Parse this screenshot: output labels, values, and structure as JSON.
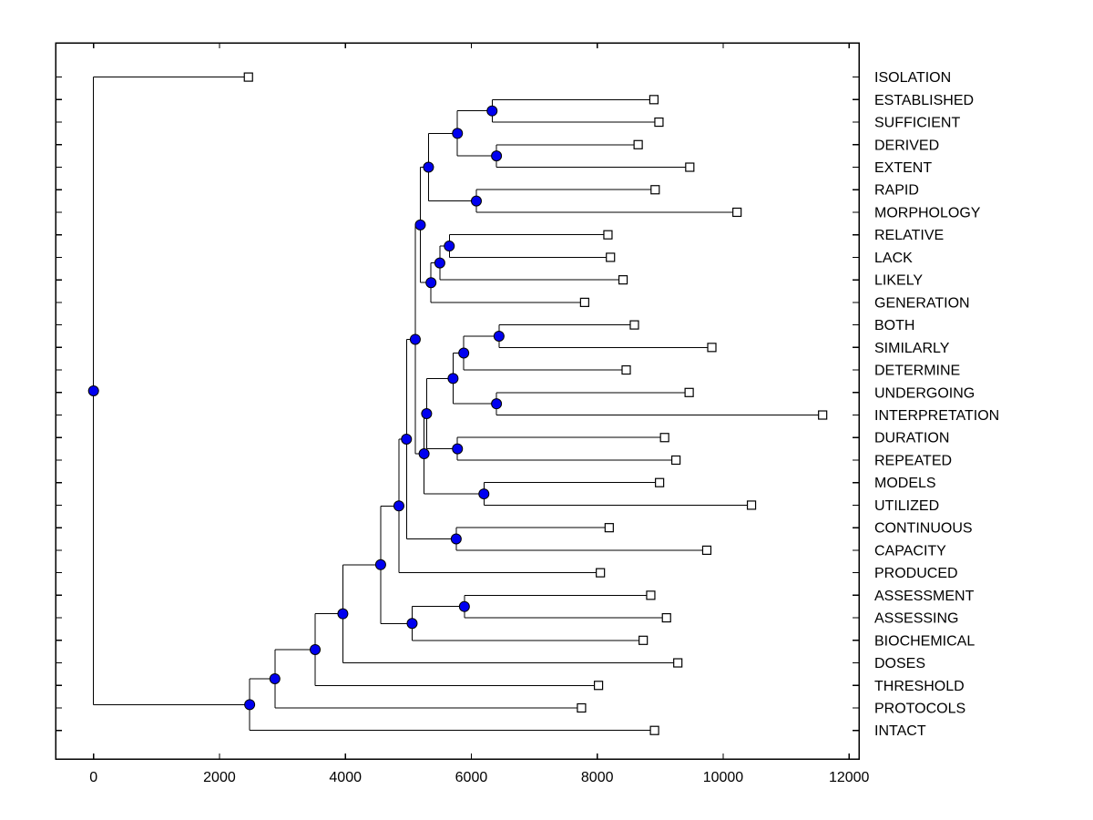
{
  "figure": {
    "background": "#ffffff"
  },
  "chart_data": {
    "type": "dendrogram",
    "subtype": "phylogenetic-tree-plot",
    "orientation": "horizontal",
    "title": "",
    "xlabel": "",
    "ylabel": "",
    "grid": false,
    "legend": null,
    "x_axis": {
      "ticks": [
        0,
        2000,
        4000,
        6000,
        8000,
        10000,
        12000
      ],
      "range": [
        -600,
        12160
      ]
    },
    "style": {
      "line_color": "#000000",
      "leaf_marker": "square",
      "leaf_marker_fill": "#ffffff",
      "leaf_marker_edge": "#000000",
      "branch_marker": "circle",
      "branch_marker_fill": "#0000f0",
      "branch_marker_edge": "#000000",
      "box_color": "#000000",
      "label_color": "#000000"
    },
    "leaves": [
      {
        "label": "ISOLATION",
        "distance": 2460
      },
      {
        "label": "ESTABLISHED",
        "distance": 8900
      },
      {
        "label": "SUFFICIENT",
        "distance": 8980
      },
      {
        "label": "DERIVED",
        "distance": 8650
      },
      {
        "label": "EXTENT",
        "distance": 9470
      },
      {
        "label": "RAPID",
        "distance": 8920
      },
      {
        "label": "MORPHOLOGY",
        "distance": 10220
      },
      {
        "label": "RELATIVE",
        "distance": 8170
      },
      {
        "label": "LACK",
        "distance": 8210
      },
      {
        "label": "LIKELY",
        "distance": 8410
      },
      {
        "label": "GENERATION",
        "distance": 7800
      },
      {
        "label": "BOTH",
        "distance": 8590
      },
      {
        "label": "SIMILARLY",
        "distance": 9820
      },
      {
        "label": "DETERMINE",
        "distance": 8460
      },
      {
        "label": "UNDERGOING",
        "distance": 9460
      },
      {
        "label": "INTERPRETATION",
        "distance": 11580
      },
      {
        "label": "DURATION",
        "distance": 9070
      },
      {
        "label": "REPEATED",
        "distance": 9250
      },
      {
        "label": "MODELS",
        "distance": 8990
      },
      {
        "label": "UTILIZED",
        "distance": 10450
      },
      {
        "label": "CONTINUOUS",
        "distance": 8190
      },
      {
        "label": "CAPACITY",
        "distance": 9740
      },
      {
        "label": "PRODUCED",
        "distance": 8050
      },
      {
        "label": "ASSESSMENT",
        "distance": 8850
      },
      {
        "label": "ASSESSING",
        "distance": 9100
      },
      {
        "label": "BIOCHEMICAL",
        "distance": 8730
      },
      {
        "label": "DOSES",
        "distance": 9280
      },
      {
        "label": "THRESHOLD",
        "distance": 8020
      },
      {
        "label": "PROTOCOLS",
        "distance": 7750
      },
      {
        "label": "INTACT",
        "distance": 8910
      }
    ],
    "branches": [
      {
        "id": "b1",
        "distance": 6330,
        "children": [
          "ESTABLISHED",
          "SUFFICIENT"
        ]
      },
      {
        "id": "b2",
        "distance": 6400,
        "children": [
          "DERIVED",
          "EXTENT"
        ]
      },
      {
        "id": "b3",
        "distance": 5780,
        "children": [
          "b1",
          "b2"
        ]
      },
      {
        "id": "b4",
        "distance": 6080,
        "children": [
          "RAPID",
          "MORPHOLOGY"
        ]
      },
      {
        "id": "b5",
        "distance": 5320,
        "children": [
          "b3",
          "b4"
        ]
      },
      {
        "id": "b6",
        "distance": 5650,
        "children": [
          "RELATIVE",
          "LACK"
        ]
      },
      {
        "id": "b7",
        "distance": 5500,
        "children": [
          "b6",
          "LIKELY"
        ]
      },
      {
        "id": "b8",
        "distance": 5360,
        "children": [
          "b7",
          "GENERATION"
        ]
      },
      {
        "id": "b9",
        "distance": 5190,
        "children": [
          "b5",
          "b8"
        ]
      },
      {
        "id": "b10",
        "distance": 6440,
        "children": [
          "BOTH",
          "SIMILARLY"
        ]
      },
      {
        "id": "b11",
        "distance": 5880,
        "children": [
          "b10",
          "DETERMINE"
        ]
      },
      {
        "id": "b12",
        "distance": 6400,
        "children": [
          "UNDERGOING",
          "INTERPRETATION"
        ]
      },
      {
        "id": "b13",
        "distance": 5710,
        "children": [
          "b11",
          "b12"
        ]
      },
      {
        "id": "b14",
        "distance": 5780,
        "children": [
          "DURATION",
          "REPEATED"
        ]
      },
      {
        "id": "b15",
        "distance": 5290,
        "children": [
          "b13",
          "b14"
        ]
      },
      {
        "id": "b16",
        "distance": 6200,
        "children": [
          "MODELS",
          "UTILIZED"
        ]
      },
      {
        "id": "b17",
        "distance": 5250,
        "children": [
          "b15",
          "b16"
        ]
      },
      {
        "id": "b18",
        "distance": 5110,
        "children": [
          "b9",
          "b17"
        ]
      },
      {
        "id": "b19",
        "distance": 5760,
        "children": [
          "CONTINUOUS",
          "CAPACITY"
        ]
      },
      {
        "id": "b20",
        "distance": 4970,
        "children": [
          "b18",
          "b19"
        ]
      },
      {
        "id": "b21",
        "distance": 4850,
        "children": [
          "b20",
          "PRODUCED"
        ]
      },
      {
        "id": "b22",
        "distance": 5890,
        "children": [
          "ASSESSMENT",
          "ASSESSING"
        ]
      },
      {
        "id": "b23",
        "distance": 5060,
        "children": [
          "b22",
          "BIOCHEMICAL"
        ]
      },
      {
        "id": "b24",
        "distance": 4560,
        "children": [
          "b21",
          "b23"
        ]
      },
      {
        "id": "b25",
        "distance": 3960,
        "children": [
          "b24",
          "DOSES"
        ]
      },
      {
        "id": "b26",
        "distance": 3520,
        "children": [
          "b25",
          "THRESHOLD"
        ]
      },
      {
        "id": "b27",
        "distance": 2880,
        "children": [
          "b26",
          "PROTOCOLS"
        ]
      },
      {
        "id": "b28",
        "distance": 2480,
        "children": [
          "b27",
          "INTACT"
        ]
      },
      {
        "id": "b29",
        "distance": 0,
        "children": [
          "ISOLATION",
          "b28"
        ]
      }
    ],
    "root_id": "b29"
  }
}
